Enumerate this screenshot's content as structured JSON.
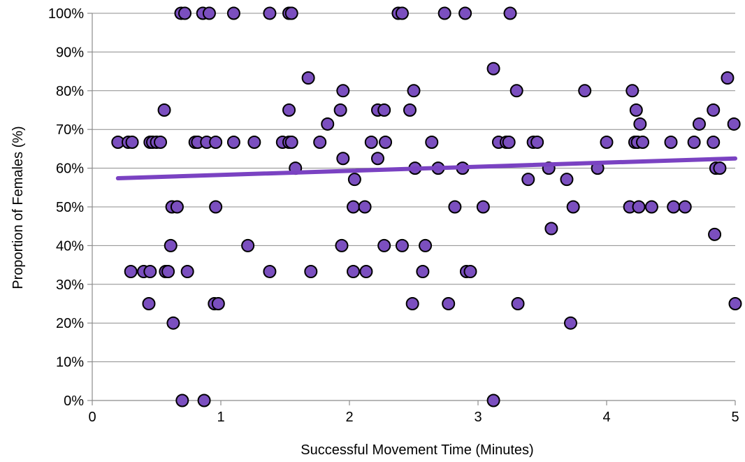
{
  "chart_data": {
    "type": "scatter",
    "xlabel": "Successful Movement Time (Minutes)",
    "ylabel": "Proportion of Females (%)",
    "xlim": [
      0,
      5
    ],
    "ylim": [
      0,
      100
    ],
    "x_ticks": [
      "0",
      "1",
      "2",
      "3",
      "4",
      "5"
    ],
    "y_ticks": [
      "0%",
      "10%",
      "20%",
      "30%",
      "40%",
      "50%",
      "60%",
      "70%",
      "80%",
      "90%",
      "100%"
    ],
    "grid": "horizontal",
    "legend": "none",
    "point_color": "#7b4fbf",
    "trend_color": "#7a42c2",
    "trendline": {
      "x": [
        0.2,
        5.0
      ],
      "y": [
        57.4,
        62.5
      ]
    },
    "points": [
      [
        0.69,
        100
      ],
      [
        0.72,
        100
      ],
      [
        0.86,
        100
      ],
      [
        0.91,
        100
      ],
      [
        1.1,
        100
      ],
      [
        1.38,
        100
      ],
      [
        1.53,
        100
      ],
      [
        1.55,
        100
      ],
      [
        2.38,
        100
      ],
      [
        2.41,
        100
      ],
      [
        2.74,
        100
      ],
      [
        2.9,
        100
      ],
      [
        3.25,
        100
      ],
      [
        1.68,
        83.3
      ],
      [
        3.12,
        85.7
      ],
      [
        4.94,
        83.3
      ],
      [
        1.95,
        80
      ],
      [
        2.5,
        80
      ],
      [
        3.3,
        80
      ],
      [
        3.83,
        80
      ],
      [
        4.2,
        80
      ],
      [
        0.56,
        75
      ],
      [
        1.53,
        75
      ],
      [
        1.93,
        75
      ],
      [
        2.22,
        75
      ],
      [
        2.27,
        75
      ],
      [
        2.47,
        75
      ],
      [
        4.23,
        75
      ],
      [
        4.83,
        75
      ],
      [
        1.83,
        71.4
      ],
      [
        4.26,
        71.4
      ],
      [
        4.72,
        71.4
      ],
      [
        4.99,
        71.4
      ],
      [
        0.2,
        66.7
      ],
      [
        0.28,
        66.7
      ],
      [
        0.31,
        66.7
      ],
      [
        0.45,
        66.7
      ],
      [
        0.47,
        66.7
      ],
      [
        0.5,
        66.7
      ],
      [
        0.53,
        66.7
      ],
      [
        0.8,
        66.7
      ],
      [
        0.82,
        66.7
      ],
      [
        0.89,
        66.7
      ],
      [
        0.96,
        66.7
      ],
      [
        1.1,
        66.7
      ],
      [
        1.26,
        66.7
      ],
      [
        1.48,
        66.7
      ],
      [
        1.53,
        66.7
      ],
      [
        1.55,
        66.7
      ],
      [
        1.77,
        66.7
      ],
      [
        2.17,
        66.7
      ],
      [
        2.28,
        66.7
      ],
      [
        2.64,
        66.7
      ],
      [
        3.16,
        66.7
      ],
      [
        3.22,
        66.7
      ],
      [
        3.24,
        66.7
      ],
      [
        3.43,
        66.7
      ],
      [
        3.46,
        66.7
      ],
      [
        4.0,
        66.7
      ],
      [
        4.22,
        66.7
      ],
      [
        4.24,
        66.7
      ],
      [
        4.28,
        66.7
      ],
      [
        4.5,
        66.7
      ],
      [
        4.68,
        66.7
      ],
      [
        4.83,
        66.7
      ],
      [
        1.95,
        62.5
      ],
      [
        2.22,
        62.5
      ],
      [
        1.58,
        60
      ],
      [
        2.51,
        60
      ],
      [
        2.69,
        60
      ],
      [
        2.88,
        60
      ],
      [
        3.55,
        60
      ],
      [
        3.93,
        60
      ],
      [
        4.85,
        60
      ],
      [
        4.88,
        60
      ],
      [
        2.04,
        57.1
      ],
      [
        3.39,
        57.1
      ],
      [
        3.69,
        57.1
      ],
      [
        0.62,
        50
      ],
      [
        0.66,
        50
      ],
      [
        0.96,
        50
      ],
      [
        2.03,
        50
      ],
      [
        2.12,
        50
      ],
      [
        2.82,
        50
      ],
      [
        3.04,
        50
      ],
      [
        3.74,
        50
      ],
      [
        4.18,
        50
      ],
      [
        4.25,
        50
      ],
      [
        4.35,
        50
      ],
      [
        4.52,
        50
      ],
      [
        4.61,
        50
      ],
      [
        3.57,
        44.4
      ],
      [
        4.84,
        42.9
      ],
      [
        0.61,
        40
      ],
      [
        1.21,
        40
      ],
      [
        1.94,
        40
      ],
      [
        2.27,
        40
      ],
      [
        2.41,
        40
      ],
      [
        2.59,
        40
      ],
      [
        0.3,
        33.3
      ],
      [
        0.4,
        33.3
      ],
      [
        0.45,
        33.3
      ],
      [
        0.57,
        33.3
      ],
      [
        0.59,
        33.3
      ],
      [
        0.74,
        33.3
      ],
      [
        1.38,
        33.3
      ],
      [
        1.7,
        33.3
      ],
      [
        2.03,
        33.3
      ],
      [
        2.13,
        33.3
      ],
      [
        2.57,
        33.3
      ],
      [
        2.91,
        33.3
      ],
      [
        2.94,
        33.3
      ],
      [
        0.44,
        25
      ],
      [
        0.95,
        25
      ],
      [
        0.98,
        25
      ],
      [
        2.49,
        25
      ],
      [
        2.77,
        25
      ],
      [
        3.31,
        25
      ],
      [
        5.0,
        25
      ],
      [
        0.63,
        20
      ],
      [
        3.72,
        20
      ],
      [
        0.7,
        0
      ],
      [
        0.87,
        0
      ],
      [
        3.12,
        0
      ]
    ]
  }
}
